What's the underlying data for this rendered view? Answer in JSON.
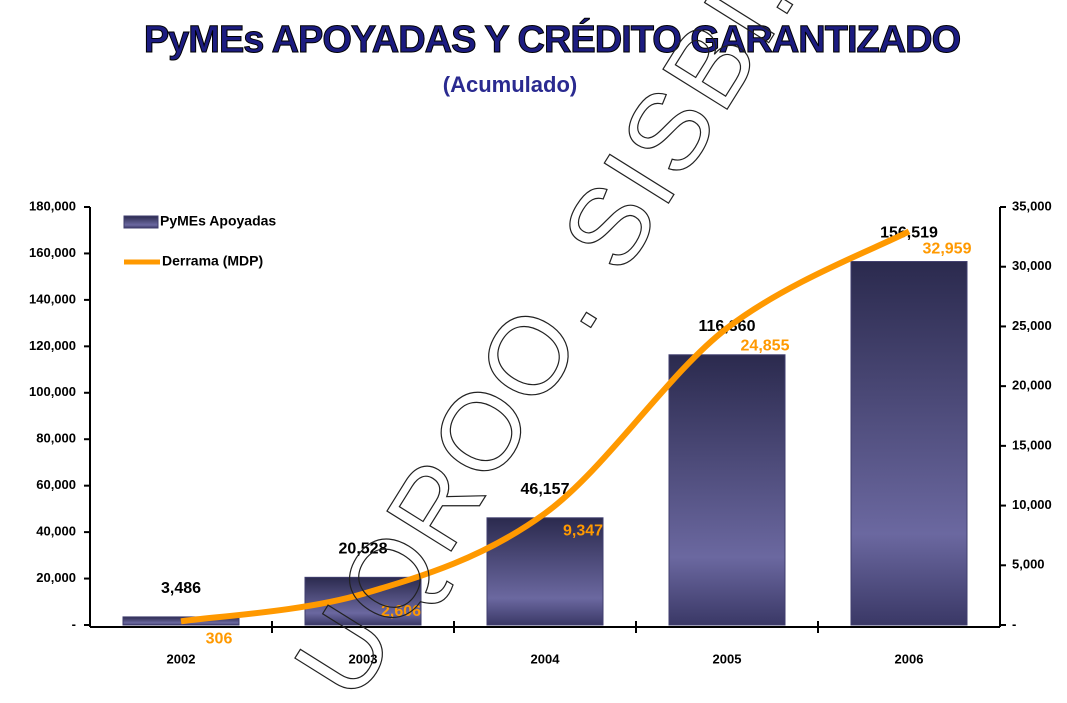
{
  "chart_data": {
    "type": "bar-line",
    "title": "PyMEs APOYADAS Y CRÉDITO GARANTIZADO",
    "subtitle": "(Acumulado)",
    "watermark": "UQROO. SISBI. CEDOC",
    "categories": [
      "2002",
      "2003",
      "2004",
      "2005",
      "2006"
    ],
    "series": [
      {
        "name": "PyMEs Apoyadas",
        "color": "#3f3d6e",
        "type": "bar",
        "values": [
          3486,
          20528,
          46157,
          116360,
          156519
        ],
        "value_labels": [
          "3,486",
          "20,528",
          "46,157",
          "116,360",
          "156,519"
        ]
      },
      {
        "name": "Derrama (MDP)",
        "color": "#ff9900",
        "type": "line",
        "axis": "y2",
        "values": [
          306,
          2606,
          9347,
          24855,
          32959
        ],
        "value_labels": [
          "306",
          "2,606",
          "9,347",
          "24,855",
          "32,959"
        ]
      }
    ],
    "ylim": [
      0,
      180000
    ],
    "yticks": [
      {
        "value": 0,
        "label": "-"
      },
      {
        "value": 20000,
        "label": "20,000"
      },
      {
        "value": 40000,
        "label": "40,000"
      },
      {
        "value": 60000,
        "label": "60,000"
      },
      {
        "value": 80000,
        "label": "80,000"
      },
      {
        "value": 100000,
        "label": "100,000"
      },
      {
        "value": 120000,
        "label": "120,000"
      },
      {
        "value": 140000,
        "label": "140,000"
      },
      {
        "value": 160000,
        "label": "160,000"
      },
      {
        "value": 180000,
        "label": "180,000"
      }
    ],
    "y2lim": [
      0,
      35000
    ],
    "y2ticks": [
      {
        "value": 0,
        "label": "-"
      },
      {
        "value": 5000,
        "label": "5,000"
      },
      {
        "value": 10000,
        "label": "10,000"
      },
      {
        "value": 15000,
        "label": "15,000"
      },
      {
        "value": 20000,
        "label": "20,000"
      },
      {
        "value": 25000,
        "label": "25,000"
      },
      {
        "value": 30000,
        "label": "30,000"
      },
      {
        "value": 35000,
        "label": "35,000"
      }
    ],
    "legend": "upper left"
  }
}
